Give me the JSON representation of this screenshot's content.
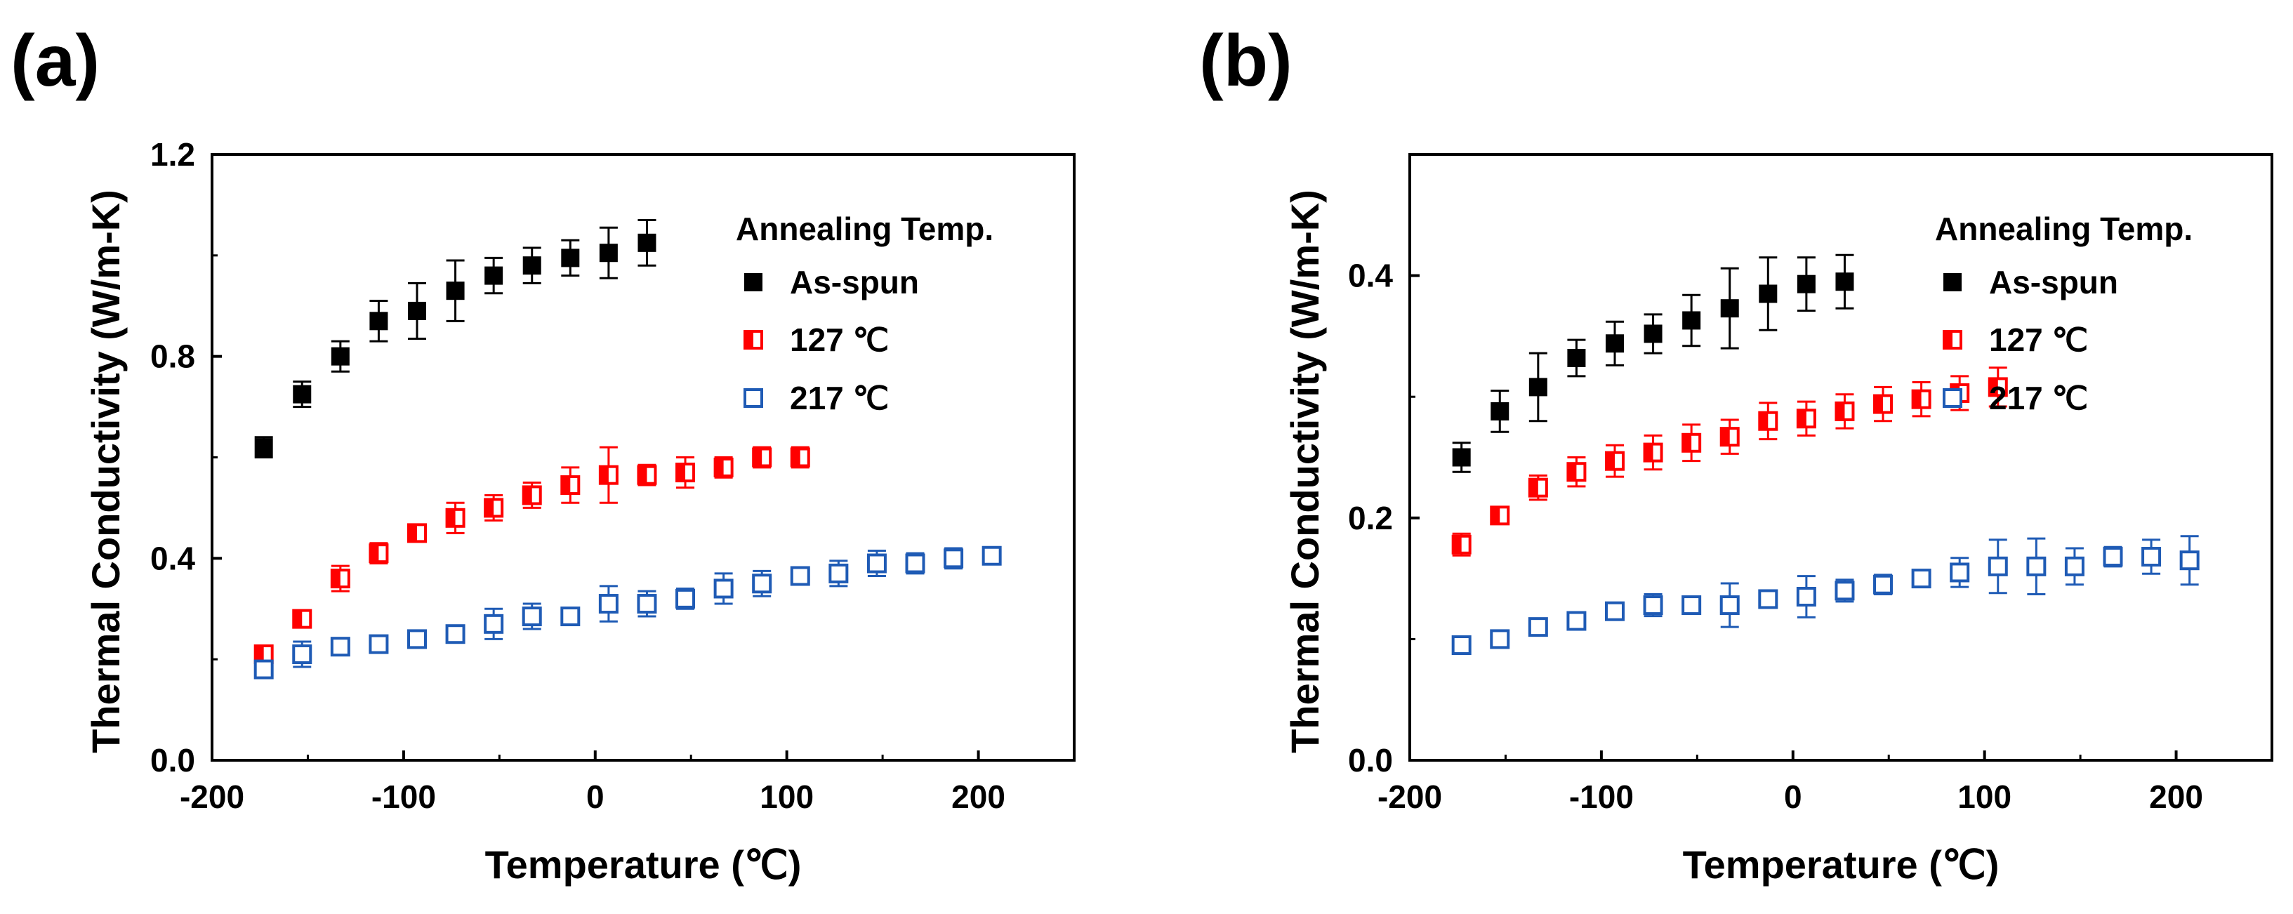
{
  "chart_data": [
    {
      "panel_label": "(a)",
      "type": "scatter",
      "xlabel": "Temperature (℃)",
      "ylabel": "Thermal Conductivity (W/m-K)",
      "xlim": [
        -200,
        250
      ],
      "ylim": [
        0.0,
        1.2
      ],
      "xticks": [
        -200,
        -100,
        0,
        100,
        200
      ],
      "xtick_labels": [
        "-200",
        "-100",
        "0",
        "100",
        "200"
      ],
      "yticks": [
        0.0,
        0.4,
        0.8,
        1.2
      ],
      "ytick_labels": [
        "0.0",
        "0.4",
        "0.8",
        "1.2"
      ],
      "legend_title": "Annealing Temp.",
      "legend_position": "top-right",
      "series": [
        {
          "name": "As-spun",
          "color": "#000000",
          "marker": "filled-square",
          "x": [
            -173,
            -153,
            -133,
            -113,
            -93,
            -73,
            -53,
            -33,
            -13,
            7,
            27
          ],
          "y": [
            0.62,
            0.725,
            0.8,
            0.87,
            0.89,
            0.93,
            0.96,
            0.98,
            0.995,
            1.005,
            1.025
          ],
          "err": [
            0.02,
            0.025,
            0.03,
            0.04,
            0.055,
            0.06,
            0.035,
            0.035,
            0.035,
            0.05,
            0.045
          ]
        },
        {
          "name": "127 ℃",
          "color": "#ff0000",
          "marker": "half-filled-square",
          "x": [
            -173,
            -153,
            -133,
            -113,
            -93,
            -73,
            -53,
            -33,
            -13,
            7,
            27,
            47,
            67,
            87,
            107
          ],
          "y": [
            0.21,
            0.28,
            0.36,
            0.41,
            0.45,
            0.48,
            0.5,
            0.525,
            0.545,
            0.565,
            0.565,
            0.57,
            0.58,
            0.6,
            0.6
          ],
          "err": [
            0.01,
            0.012,
            0.025,
            0.02,
            0.015,
            0.03,
            0.025,
            0.025,
            0.035,
            0.055,
            0.02,
            0.03,
            0.02,
            0.02,
            0.02
          ]
        },
        {
          "name": "217 ℃",
          "color": "#1f5bb5",
          "marker": "open-square",
          "x": [
            -173,
            -153,
            -133,
            -113,
            -93,
            -73,
            -53,
            -33,
            -13,
            7,
            27,
            47,
            67,
            87,
            107,
            127,
            147,
            167,
            187,
            207
          ],
          "y": [
            0.18,
            0.21,
            0.225,
            0.23,
            0.24,
            0.25,
            0.27,
            0.285,
            0.285,
            0.31,
            0.31,
            0.32,
            0.34,
            0.35,
            0.365,
            0.37,
            0.39,
            0.39,
            0.4,
            0.405
          ],
          "err": [
            0.01,
            0.025,
            0.012,
            0.015,
            0.012,
            0.015,
            0.03,
            0.025,
            0.015,
            0.035,
            0.025,
            0.02,
            0.03,
            0.025,
            0.015,
            0.025,
            0.025,
            0.02,
            0.02,
            0.01
          ]
        }
      ]
    },
    {
      "panel_label": "(b)",
      "type": "scatter",
      "xlabel": "Temperature (℃)",
      "ylabel": "Thermal Conductivity (W/m-K)",
      "xlim": [
        -200,
        250
      ],
      "ylim": [
        0.0,
        0.5
      ],
      "xticks": [
        -200,
        -100,
        0,
        100,
        200
      ],
      "xtick_labels": [
        "-200",
        "-100",
        "0",
        "100",
        "200"
      ],
      "yticks": [
        0.0,
        0.2,
        0.4
      ],
      "ytick_labels": [
        "0.0",
        "0.2",
        "0.4"
      ],
      "legend_title": "Annealing Temp.",
      "legend_position": "top-right",
      "series": [
        {
          "name": "As-spun",
          "color": "#000000",
          "marker": "filled-square",
          "x": [
            -173,
            -153,
            -133,
            -113,
            -93,
            -73,
            -53,
            -33,
            -13,
            7,
            27
          ],
          "y": [
            0.25,
            0.288,
            0.308,
            0.332,
            0.344,
            0.352,
            0.363,
            0.373,
            0.385,
            0.393,
            0.395
          ],
          "err": [
            0.012,
            0.017,
            0.028,
            0.015,
            0.018,
            0.016,
            0.021,
            0.033,
            0.03,
            0.022,
            0.022
          ]
        },
        {
          "name": "127 ℃",
          "color": "#ff0000",
          "marker": "half-filled-square",
          "x": [
            -173,
            -153,
            -133,
            -113,
            -93,
            -73,
            -53,
            -33,
            -13,
            7,
            27,
            47,
            67,
            87,
            107
          ],
          "y": [
            0.178,
            0.202,
            0.225,
            0.238,
            0.247,
            0.254,
            0.262,
            0.267,
            0.28,
            0.282,
            0.288,
            0.294,
            0.298,
            0.303,
            0.308
          ],
          "err": [
            0.009,
            0.007,
            0.01,
            0.012,
            0.013,
            0.014,
            0.015,
            0.014,
            0.015,
            0.014,
            0.014,
            0.014,
            0.014,
            0.014,
            0.016
          ]
        },
        {
          "name": "217 ℃",
          "color": "#1f5bb5",
          "marker": "open-square",
          "x": [
            -173,
            -153,
            -133,
            -113,
            -93,
            -73,
            -53,
            -33,
            -13,
            7,
            27,
            47,
            67,
            87,
            107,
            127,
            147,
            167,
            187,
            207
          ],
          "y": [
            0.095,
            0.1,
            0.11,
            0.115,
            0.123,
            0.128,
            0.128,
            0.128,
            0.133,
            0.135,
            0.14,
            0.145,
            0.15,
            0.155,
            0.16,
            0.16,
            0.16,
            0.168,
            0.168,
            0.165
          ],
          "err": [
            0.005,
            0.005,
            0.006,
            0.005,
            0.006,
            0.009,
            0.006,
            0.018,
            0.006,
            0.017,
            0.009,
            0.008,
            0.006,
            0.012,
            0.022,
            0.023,
            0.015,
            0.008,
            0.014,
            0.02
          ]
        }
      ]
    }
  ]
}
